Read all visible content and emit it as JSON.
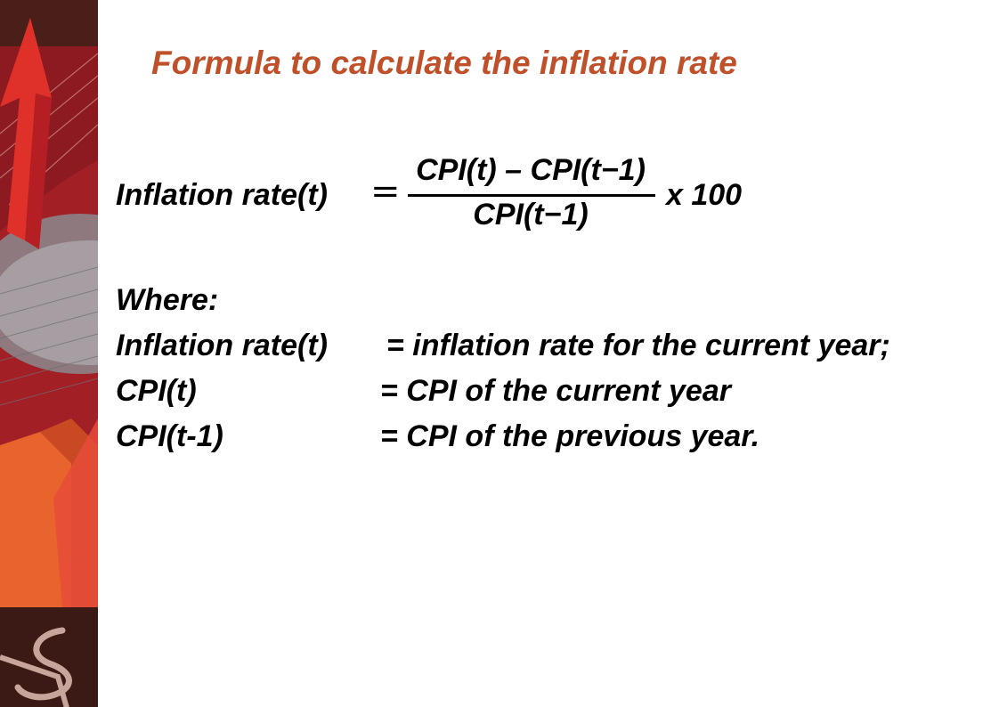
{
  "colors": {
    "title": "#c0502a",
    "text": "#000000",
    "sidebar_dark": "#3b1a16",
    "sidebar_red": "#b0222a",
    "arrow": "#e0302a"
  },
  "slide": {
    "title": "Formula to calculate the inflation rate"
  },
  "formula": {
    "lhs": "Inflation rate(t)",
    "equals": "=",
    "numerator": "CPI(t) – CPI(t−1)",
    "denominator": "CPI(t−1)",
    "multiplier": "x 100"
  },
  "definitions": {
    "heading": "Where:",
    "rows": [
      {
        "term": "Inflation rate(t)",
        "description": "= inflation rate for the current year;"
      },
      {
        "term": "CPI(t)",
        "description": "= CPI of the current year"
      },
      {
        "term": "CPI(t-1)",
        "description": "= CPI of the previous year."
      }
    ]
  },
  "sidebar": {
    "logo_icon": "dollar-sign-logo-icon",
    "graphic_icon": "rising-arrow-icon"
  }
}
